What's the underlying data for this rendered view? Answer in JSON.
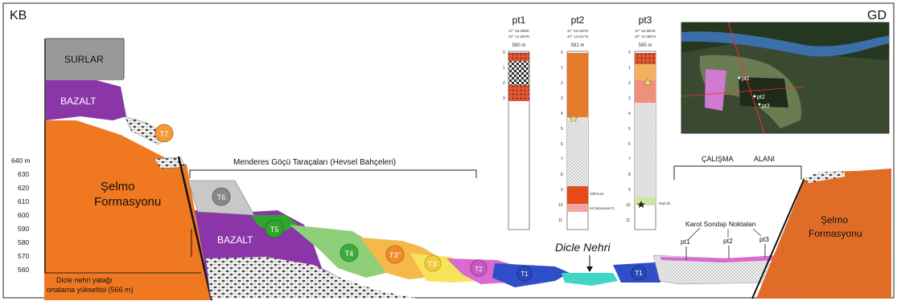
{
  "corners": {
    "left": "KB",
    "right": "GD"
  },
  "units": [
    "SURLAR",
    "BAZALT",
    "Şelmo",
    "Formasyonu",
    "BAZALT",
    "Şelmo",
    "Formasyonu"
  ],
  "terraces": [
    "T7",
    "T6",
    "T5",
    "T4",
    "T3''",
    "T3'",
    "T2",
    "T1",
    "T1"
  ],
  "elevation_axis": {
    "ticks": [
      "640 m",
      "630",
      "620",
      "610",
      "600",
      "590",
      "580",
      "570",
      "560"
    ],
    "caption_lines": [
      "Dicle nehri yatağı",
      "ortalama yükseltisi (566 m)"
    ]
  },
  "brackets": {
    "terraces_label": "Menderes Göçü Taraçaları (Hevsel Bahçeleri)",
    "study_area_words": [
      "ÇALIŞMA",
      "ALANI"
    ]
  },
  "river": {
    "label": "Dicle Nehri"
  },
  "cores": {
    "label": "Karot Sondajı Noktaları",
    "points": [
      "pt1",
      "pt2",
      "pt3"
    ]
  },
  "logs": [
    {
      "name": "pt1",
      "lat": "37° 53.098'E",
      "lon": "40° 14.263'N",
      "elev": "580 m"
    },
    {
      "name": "pt2",
      "lat": "37° 53.040'N",
      "lon": "40° 14.547'N",
      "elev": "581 m"
    },
    {
      "name": "pt3",
      "lat": "37° 52.984'E",
      "lon": "40° 14.385'N",
      "elev": "585 m"
    }
  ],
  "log_depth_ticks": [
    "0",
    "1",
    "2",
    "3",
    "4",
    "5",
    "6",
    "7",
    "8",
    "9",
    "10",
    "11"
  ],
  "log_annotations": {
    "pt2_a": "Milli kum",
    "pt2_b": "Kil (tamamen?)",
    "pt3_a": "Yeşil kil"
  },
  "map_labels": [
    "pt1",
    "pt2",
    "pt3"
  ],
  "colors": {
    "selmo": "#f07820",
    "bazalt": "#8a36a8",
    "surlar": "#999999",
    "t7": "#f39a3a",
    "t6": "#9b9b9b",
    "t5": "#2fa52f",
    "t4": "#8ed07a",
    "t3pp": "#f5b84a",
    "t3p": "#f7e35a",
    "t2": "#d86ad0",
    "t1": "#2f4fc8",
    "river": "#3fd6c8"
  }
}
